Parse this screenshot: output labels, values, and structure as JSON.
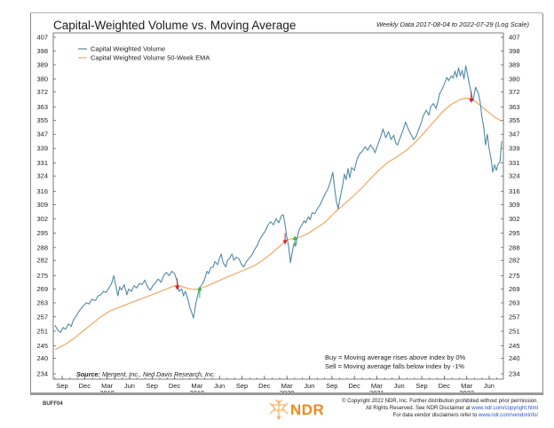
{
  "header": {
    "title": "Capital-Weighted Volume vs. Moving Average",
    "subtitle": "Weekly Data 2017-08-04 to 2022-07-29 (Log Scale)"
  },
  "footer": {
    "code": "BUFF04",
    "brand": "NDR",
    "copyright_line1": "© Copyright 2022 NDR, Inc. Further distribution prohibited without prior permission.",
    "copyright_line2_prefix": "All Rights Reserved. See NDR Disclaimer at ",
    "copyright_line2_link": "www.ndr.com/copyright.html",
    "copyright_line3_prefix": "For data vendor disclaimers refer to ",
    "copyright_line3_link": "www.ndr.com/vendorinfo/"
  },
  "colors": {
    "volume": "#4f8aa6",
    "ema": "#f0a860",
    "buy": "#2fb84a",
    "sell": "#d9202a"
  },
  "chart_data": {
    "type": "line",
    "title": "Capital-Weighted Volume vs. Moving Average",
    "subtitle": "Weekly Data 2017-08-04 to 2022-07-29 (Log Scale)",
    "xlabel": "",
    "ylabel": "",
    "y_scale": "log",
    "ylim": [
      231,
      410
    ],
    "xlim": [
      "2017-08-04",
      "2022-07-29"
    ],
    "grid": false,
    "legend_position": "top-left",
    "y_ticks": [
      407,
      398,
      389,
      380,
      372,
      363,
      355,
      347,
      339,
      331,
      324,
      316,
      309,
      302,
      295,
      288,
      282,
      275,
      269,
      263,
      257,
      251,
      245,
      240,
      234
    ],
    "x_ticks": [
      {
        "label": "Sep",
        "date": 2017.67
      },
      {
        "label": "Dec",
        "date": 2017.92
      },
      {
        "label": "Mar",
        "date": 2018.17,
        "year": "2018"
      },
      {
        "label": "Jun",
        "date": 2018.42
      },
      {
        "label": "Sep",
        "date": 2018.67
      },
      {
        "label": "Dec",
        "date": 2018.92
      },
      {
        "label": "Mar",
        "date": 2019.17,
        "year": "2019"
      },
      {
        "label": "Jun",
        "date": 2019.42
      },
      {
        "label": "Sep",
        "date": 2019.67
      },
      {
        "label": "Dec",
        "date": 2019.92
      },
      {
        "label": "Mar",
        "date": 2020.17,
        "year": "2020"
      },
      {
        "label": "Jun",
        "date": 2020.42
      },
      {
        "label": "Sep",
        "date": 2020.67
      },
      {
        "label": "Dec",
        "date": 2020.92
      },
      {
        "label": "Mar",
        "date": 2021.17,
        "year": "2021"
      },
      {
        "label": "Jun",
        "date": 2021.42
      },
      {
        "label": "Sep",
        "date": 2021.67
      },
      {
        "label": "Dec",
        "date": 2021.92
      },
      {
        "label": "Mar",
        "date": 2022.17,
        "year": "2022"
      },
      {
        "label": "Jun",
        "date": 2022.42
      }
    ],
    "series": [
      {
        "name": "Capital Weighted Volume",
        "color": "#4f8aa6",
        "points": [
          [
            2017.59,
            253.5
          ],
          [
            2017.62,
            251.5
          ],
          [
            2017.65,
            250.5
          ],
          [
            2017.68,
            252.5
          ],
          [
            2017.71,
            251.8
          ],
          [
            2017.74,
            254
          ],
          [
            2017.77,
            253
          ],
          [
            2017.8,
            256
          ],
          [
            2017.83,
            257.5
          ],
          [
            2017.86,
            259.5
          ],
          [
            2017.9,
            261.5
          ],
          [
            2017.94,
            263
          ],
          [
            2017.97,
            262.5
          ],
          [
            2018.0,
            264.5
          ],
          [
            2018.04,
            264
          ],
          [
            2018.07,
            266
          ],
          [
            2018.1,
            266.5
          ],
          [
            2018.13,
            268
          ],
          [
            2018.16,
            267.5
          ],
          [
            2018.19,
            269.5
          ],
          [
            2018.22,
            271.5
          ],
          [
            2018.245,
            275
          ],
          [
            2018.265,
            271
          ],
          [
            2018.29,
            266
          ],
          [
            2018.31,
            270
          ],
          [
            2018.33,
            268.5
          ],
          [
            2018.36,
            271
          ],
          [
            2018.39,
            266.5
          ],
          [
            2018.41,
            269
          ],
          [
            2018.44,
            268
          ],
          [
            2018.47,
            270.5
          ],
          [
            2018.5,
            269.5
          ],
          [
            2018.53,
            271.5
          ],
          [
            2018.56,
            271
          ],
          [
            2018.59,
            273
          ],
          [
            2018.62,
            270
          ],
          [
            2018.65,
            268.5
          ],
          [
            2018.68,
            270.5
          ],
          [
            2018.71,
            272
          ],
          [
            2018.74,
            273.5
          ],
          [
            2018.77,
            272
          ],
          [
            2018.8,
            275
          ],
          [
            2018.83,
            276.5
          ],
          [
            2018.86,
            275
          ],
          [
            2018.89,
            277
          ],
          [
            2018.92,
            276
          ],
          [
            2018.95,
            272.5
          ],
          [
            2018.97,
            268
          ],
          [
            2019.0,
            269
          ],
          [
            2019.02,
            266
          ],
          [
            2019.04,
            268
          ],
          [
            2019.07,
            264.5
          ],
          [
            2019.09,
            261
          ],
          [
            2019.11,
            259
          ],
          [
            2019.13,
            256.5
          ],
          [
            2019.15,
            261
          ],
          [
            2019.17,
            265
          ],
          [
            2019.19,
            268
          ],
          [
            2019.21,
            270
          ],
          [
            2019.24,
            272
          ],
          [
            2019.26,
            274
          ],
          [
            2019.28,
            277
          ],
          [
            2019.3,
            276
          ],
          [
            2019.32,
            278.5
          ],
          [
            2019.35,
            279
          ],
          [
            2019.37,
            281.5
          ],
          [
            2019.4,
            280
          ],
          [
            2019.42,
            283
          ],
          [
            2019.44,
            285
          ],
          [
            2019.46,
            281
          ],
          [
            2019.49,
            279
          ],
          [
            2019.51,
            282
          ],
          [
            2019.54,
            283.5
          ],
          [
            2019.56,
            285
          ],
          [
            2019.58,
            282
          ],
          [
            2019.61,
            283.5
          ],
          [
            2019.64,
            282.5
          ],
          [
            2019.66,
            280.5
          ],
          [
            2019.69,
            279
          ],
          [
            2019.72,
            281.5
          ],
          [
            2019.75,
            283
          ],
          [
            2019.78,
            284.5
          ],
          [
            2019.81,
            287
          ],
          [
            2019.84,
            289
          ],
          [
            2019.87,
            292
          ],
          [
            2019.9,
            294
          ],
          [
            2019.93,
            296
          ],
          [
            2019.96,
            299
          ],
          [
            2019.99,
            300.5
          ],
          [
            2020.02,
            299
          ],
          [
            2020.05,
            302
          ],
          [
            2020.08,
            300
          ],
          [
            2020.11,
            303.5
          ],
          [
            2020.13,
            304
          ],
          [
            2020.15,
            299
          ],
          [
            2020.17,
            293
          ],
          [
            2020.19,
            288.5
          ],
          [
            2020.21,
            281
          ],
          [
            2020.23,
            286
          ],
          [
            2020.25,
            290
          ],
          [
            2020.27,
            289
          ],
          [
            2020.29,
            294
          ],
          [
            2020.31,
            297
          ],
          [
            2020.34,
            299
          ],
          [
            2020.36,
            301
          ],
          [
            2020.38,
            300
          ],
          [
            2020.41,
            303
          ],
          [
            2020.43,
            301.5
          ],
          [
            2020.45,
            305
          ],
          [
            2020.48,
            304.5
          ],
          [
            2020.51,
            307
          ],
          [
            2020.54,
            309
          ],
          [
            2020.57,
            312
          ],
          [
            2020.6,
            315
          ],
          [
            2020.63,
            317.5
          ],
          [
            2020.66,
            322
          ],
          [
            2020.68,
            326
          ],
          [
            2020.7,
            318
          ],
          [
            2020.72,
            311
          ],
          [
            2020.74,
            307
          ],
          [
            2020.76,
            312
          ],
          [
            2020.79,
            319
          ],
          [
            2020.81,
            325
          ],
          [
            2020.83,
            322
          ],
          [
            2020.85,
            328
          ],
          [
            2020.87,
            323
          ],
          [
            2020.89,
            328.5
          ],
          [
            2020.92,
            327
          ],
          [
            2020.95,
            333
          ],
          [
            2020.98,
            336
          ],
          [
            2021.01,
            337.5
          ],
          [
            2021.04,
            340
          ],
          [
            2021.07,
            338
          ],
          [
            2021.1,
            341
          ],
          [
            2021.13,
            339
          ],
          [
            2021.15,
            336.5
          ],
          [
            2021.18,
            341
          ],
          [
            2021.21,
            345
          ],
          [
            2021.24,
            350
          ],
          [
            2021.27,
            345
          ],
          [
            2021.3,
            348.5
          ],
          [
            2021.33,
            344
          ],
          [
            2021.36,
            346.5
          ],
          [
            2021.38,
            342
          ],
          [
            2021.4,
            341
          ],
          [
            2021.43,
            345
          ],
          [
            2021.46,
            349
          ],
          [
            2021.49,
            354
          ],
          [
            2021.52,
            350
          ],
          [
            2021.55,
            347
          ],
          [
            2021.58,
            344
          ],
          [
            2021.61,
            346
          ],
          [
            2021.63,
            349
          ],
          [
            2021.66,
            353
          ],
          [
            2021.69,
            358
          ],
          [
            2021.72,
            361
          ],
          [
            2021.75,
            358
          ],
          [
            2021.77,
            363
          ],
          [
            2021.8,
            365
          ],
          [
            2021.83,
            362
          ],
          [
            2021.85,
            366
          ],
          [
            2021.87,
            371
          ],
          [
            2021.9,
            374
          ],
          [
            2021.93,
            378
          ],
          [
            2021.95,
            381
          ],
          [
            2021.97,
            379
          ],
          [
            2022.0,
            382
          ],
          [
            2022.02,
            380.5
          ],
          [
            2022.04,
            385
          ],
          [
            2022.06,
            381
          ],
          [
            2022.08,
            387
          ],
          [
            2022.1,
            382
          ],
          [
            2022.12,
            385.5
          ],
          [
            2022.14,
            380
          ],
          [
            2022.16,
            388.5
          ],
          [
            2022.19,
            380
          ],
          [
            2022.21,
            374
          ],
          [
            2022.24,
            366.5
          ],
          [
            2022.27,
            375
          ],
          [
            2022.3,
            371
          ],
          [
            2022.32,
            366
          ],
          [
            2022.34,
            357
          ],
          [
            2022.36,
            351
          ],
          [
            2022.38,
            341
          ],
          [
            2022.4,
            347
          ],
          [
            2022.42,
            339
          ],
          [
            2022.44,
            333.5
          ],
          [
            2022.46,
            326
          ],
          [
            2022.48,
            330
          ],
          [
            2022.5,
            327
          ],
          [
            2022.52,
            330.5
          ],
          [
            2022.54,
            331.5
          ],
          [
            2022.56,
            343
          ]
        ]
      },
      {
        "name": "Capital Weighted Volume 50-Week EMA",
        "color": "#f0a860",
        "points": [
          [
            2017.59,
            243.5
          ],
          [
            2017.7,
            245.5
          ],
          [
            2017.8,
            248
          ],
          [
            2017.9,
            251
          ],
          [
            2018.0,
            254
          ],
          [
            2018.1,
            257
          ],
          [
            2018.2,
            259.5
          ],
          [
            2018.3,
            261
          ],
          [
            2018.4,
            262.5
          ],
          [
            2018.5,
            264
          ],
          [
            2018.6,
            265.5
          ],
          [
            2018.7,
            267
          ],
          [
            2018.8,
            268.5
          ],
          [
            2018.9,
            270.2
          ],
          [
            2018.97,
            270.6
          ],
          [
            2019.05,
            269.5
          ],
          [
            2019.13,
            268.8
          ],
          [
            2019.22,
            269.4
          ],
          [
            2019.3,
            270.7
          ],
          [
            2019.4,
            272.5
          ],
          [
            2019.5,
            274.3
          ],
          [
            2019.6,
            276
          ],
          [
            2019.7,
            277.6
          ],
          [
            2019.8,
            279.4
          ],
          [
            2019.9,
            282
          ],
          [
            2020.0,
            285.3
          ],
          [
            2020.1,
            289
          ],
          [
            2020.16,
            291.5
          ],
          [
            2020.22,
            292.2
          ],
          [
            2020.3,
            292.8
          ],
          [
            2020.4,
            294.6
          ],
          [
            2020.5,
            297.4
          ],
          [
            2020.6,
            300.5
          ],
          [
            2020.7,
            305
          ],
          [
            2020.8,
            309
          ],
          [
            2020.9,
            313
          ],
          [
            2021.0,
            317.5
          ],
          [
            2021.1,
            322.5
          ],
          [
            2021.2,
            327.5
          ],
          [
            2021.3,
            331.5
          ],
          [
            2021.4,
            334.5
          ],
          [
            2021.5,
            338
          ],
          [
            2021.6,
            342.5
          ],
          [
            2021.7,
            348
          ],
          [
            2021.8,
            354
          ],
          [
            2021.9,
            360
          ],
          [
            2022.0,
            364.5
          ],
          [
            2022.1,
            367.5
          ],
          [
            2022.18,
            368.3
          ],
          [
            2022.25,
            367
          ],
          [
            2022.32,
            364
          ],
          [
            2022.4,
            360.5
          ],
          [
            2022.48,
            357
          ],
          [
            2022.56,
            354.5
          ]
        ]
      }
    ],
    "signals": [
      {
        "type": "sell",
        "date": 2018.95,
        "value": 270.5
      },
      {
        "type": "buy",
        "date": 2019.2,
        "value": 269
      },
      {
        "type": "sell",
        "date": 2020.15,
        "value": 291.5
      },
      {
        "type": "buy",
        "date": 2020.26,
        "value": 292.5
      },
      {
        "type": "sell",
        "date": 2022.22,
        "value": 368
      }
    ],
    "legend": [
      "Capital Weighted Volume",
      "Capital Weighted Volume 50-Week EMA"
    ],
    "annotations": {
      "buy_rule": "Buy = Moving average rises above index by 0%",
      "sell_rule": "Sell = Moving average falls below index by -1%",
      "source_label": "Source:",
      "source_text": "Mergent, Inc., Ned Davis Research, Inc."
    }
  }
}
